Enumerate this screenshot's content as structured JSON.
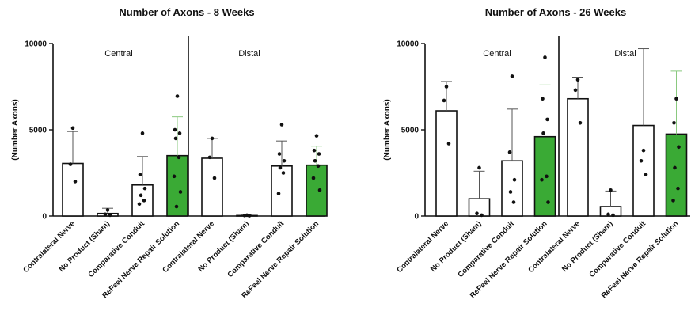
{
  "colors": {
    "bar_fill_default": "#ffffff",
    "bar_fill_highlight": "#3aaa35",
    "bar_stroke": "#111111",
    "error_highlight": "#8ac97f",
    "axis": "#111111"
  },
  "chart_data": [
    {
      "type": "bar",
      "title": "Number of Axons - 8 Weeks",
      "ylabel": "(Number Axons)",
      "ylim": [
        0,
        10000
      ],
      "yticks": [
        0,
        5000,
        10000
      ],
      "regions": [
        "Central",
        "Distal"
      ],
      "categories": [
        "Contralateral Nerve",
        "No Product (Sham)",
        "Comparative Conduit",
        "ReFeel Nerve Repair Solution",
        "Contralateral Nerve",
        "No Product (Sham)",
        "Comparative Conduit",
        "ReFeel Nerve Repair Solution"
      ],
      "bars": [
        {
          "region": "Central",
          "category": "Contralateral Nerve",
          "value": 3050,
          "err_low": 1250,
          "err_high": 4900,
          "highlight": false,
          "points": [
            5100,
            3000,
            2000
          ]
        },
        {
          "region": "Central",
          "category": "No Product (Sham)",
          "value": 150,
          "err_low": 0,
          "err_high": 450,
          "highlight": false,
          "points": [
            350,
            100,
            50
          ]
        },
        {
          "region": "Central",
          "category": "Comparative Conduit",
          "value": 1800,
          "err_low": 250,
          "err_high": 3450,
          "highlight": false,
          "points": [
            4800,
            2400,
            1600,
            1200,
            900,
            700
          ]
        },
        {
          "region": "Central",
          "category": "ReFeel Nerve Repair Solution",
          "value": 3500,
          "err_low": 1200,
          "err_high": 5750,
          "highlight": true,
          "points": [
            6950,
            5000,
            4800,
            4500,
            3400,
            2300,
            1400,
            550
          ]
        },
        {
          "region": "Distal",
          "category": "Contralateral Nerve",
          "value": 3350,
          "err_low": 2150,
          "err_high": 4500,
          "highlight": false,
          "points": [
            4500,
            3400,
            2200
          ]
        },
        {
          "region": "Distal",
          "category": "No Product (Sham)",
          "value": 30,
          "err_low": 0,
          "err_high": 60,
          "highlight": false,
          "points": [
            50,
            30,
            20
          ]
        },
        {
          "region": "Distal",
          "category": "Comparative Conduit",
          "value": 2900,
          "err_low": 1450,
          "err_high": 4350,
          "highlight": false,
          "points": [
            5300,
            3600,
            3200,
            2800,
            2500,
            1300
          ]
        },
        {
          "region": "Distal",
          "category": "ReFeel Nerve Repair Solution",
          "value": 2950,
          "err_low": 1850,
          "err_high": 4050,
          "highlight": true,
          "points": [
            4650,
            3800,
            3600,
            3200,
            2900,
            2200,
            1500
          ]
        }
      ],
      "grid": false
    },
    {
      "type": "bar",
      "title": "Number of Axons - 26 Weeks",
      "ylabel": "(Number Axons)",
      "ylim": [
        0,
        10000
      ],
      "yticks": [
        0,
        5000,
        10000
      ],
      "regions": [
        "Central",
        "Distal"
      ],
      "categories": [
        "Contralateral Nerve",
        "No Product (Sham)",
        "Comparative Conduit",
        "ReFeel Nerve Repair Solution",
        "Contralateral Nerve",
        "No Product (Sham)",
        "Comparative Conduit",
        "ReFeel Nerve Repair Solution"
      ],
      "bars": [
        {
          "region": "Central",
          "category": "Contralateral Nerve",
          "value": 6100,
          "err_low": 4350,
          "err_high": 7800,
          "highlight": false,
          "points": [
            7500,
            6700,
            4200
          ]
        },
        {
          "region": "Central",
          "category": "No Product (Sham)",
          "value": 1000,
          "err_low": 0,
          "err_high": 2600,
          "highlight": false,
          "points": [
            2800,
            150,
            50
          ]
        },
        {
          "region": "Central",
          "category": "Comparative Conduit",
          "value": 3200,
          "err_low": 250,
          "err_high": 6200,
          "highlight": false,
          "points": [
            8100,
            3700,
            2100,
            1400,
            800
          ]
        },
        {
          "region": "Central",
          "category": "ReFeel Nerve Repair Solution",
          "value": 4600,
          "err_low": 1550,
          "err_high": 7600,
          "highlight": true,
          "points": [
            9200,
            6800,
            5600,
            4800,
            2300,
            2100,
            800
          ]
        },
        {
          "region": "Distal",
          "category": "Contralateral Nerve",
          "value": 6800,
          "err_low": 5500,
          "err_high": 8050,
          "highlight": false,
          "points": [
            7900,
            7300,
            5400
          ]
        },
        {
          "region": "Distal",
          "category": "No Product (Sham)",
          "value": 550,
          "err_low": 0,
          "err_high": 1450,
          "highlight": false,
          "points": [
            1500,
            100,
            50
          ]
        },
        {
          "region": "Distal",
          "category": "Comparative Conduit",
          "value": 5250,
          "err_low": 850,
          "err_high": 9700,
          "highlight": false,
          "points": [
            3800,
            3200,
            2400
          ]
        },
        {
          "region": "Distal",
          "category": "ReFeel Nerve Repair Solution",
          "value": 4750,
          "err_low": 1050,
          "err_high": 8400,
          "highlight": true,
          "points": [
            6800,
            5400,
            4000,
            2800,
            1600,
            900
          ]
        }
      ],
      "grid": false
    }
  ]
}
